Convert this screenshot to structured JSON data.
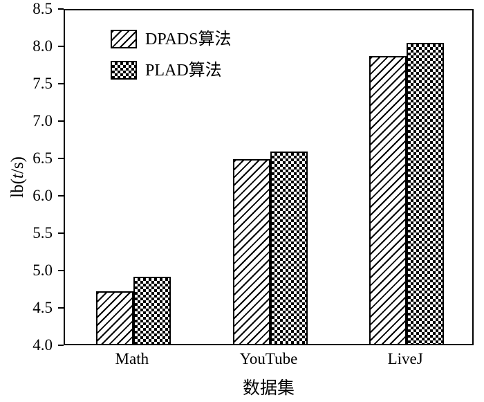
{
  "chart_data": {
    "type": "bar",
    "categories": [
      "Math",
      "YouTube",
      "LiveJ"
    ],
    "series": [
      {
        "name": "DPADS算法",
        "pattern": "diagonal-hatch",
        "values": [
          4.7,
          6.47,
          7.85
        ]
      },
      {
        "name": "PLAD算法",
        "pattern": "checker",
        "values": [
          4.9,
          6.57,
          8.03
        ]
      }
    ],
    "title": "",
    "xlabel": "数据集",
    "ylabel": "lb(t/s)",
    "ylabel_parts": [
      "lb(",
      "t",
      "/s)"
    ],
    "ylim": [
      4.0,
      8.5
    ],
    "ytick_step": 0.5,
    "yticks": [
      "4.0",
      "4.5",
      "5.0",
      "5.5",
      "6.0",
      "6.5",
      "7.0",
      "7.5",
      "8.0",
      "8.5"
    ],
    "grid": false,
    "legend_position": "top-left-inside",
    "colors": {
      "bar_fill": "#ffffff",
      "bar_stroke": "#000000",
      "axis": "#000000",
      "background": "#ffffff"
    }
  }
}
